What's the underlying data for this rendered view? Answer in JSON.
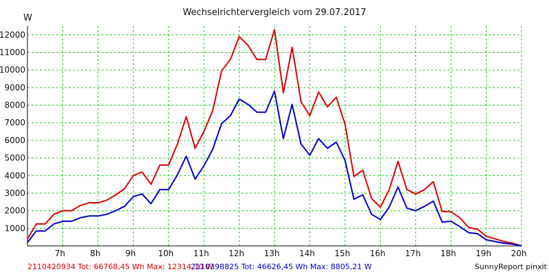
{
  "chart_data": {
    "type": "line",
    "title": "Wechselrichtervergleich vom 29.07.2017",
    "ylabel": "W",
    "xlabel": "",
    "x_range_hours": [
      6.0,
      20.0
    ],
    "ylim": [
      0,
      12500
    ],
    "grid": true,
    "y_ticks": [
      1000,
      2000,
      3000,
      4000,
      5000,
      6000,
      7000,
      8000,
      9000,
      10000,
      11000,
      12000
    ],
    "x_ticks": [
      {
        "value": 7,
        "label": "7h"
      },
      {
        "value": 8,
        "label": "8h"
      },
      {
        "value": 9,
        "label": "9h"
      },
      {
        "value": 10,
        "label": "10h"
      },
      {
        "value": 11,
        "label": "11h"
      },
      {
        "value": 12,
        "label": "12h"
      },
      {
        "value": 13,
        "label": "13h"
      },
      {
        "value": 14,
        "label": "14h"
      },
      {
        "value": 15,
        "label": "15h"
      },
      {
        "value": 16,
        "label": "16h"
      },
      {
        "value": 17,
        "label": "17h"
      },
      {
        "value": 18,
        "label": "18h"
      },
      {
        "value": 19,
        "label": "19h"
      },
      {
        "value": 20,
        "label": "20h"
      }
    ],
    "x": [
      6.0,
      6.25,
      6.5,
      6.75,
      7.0,
      7.25,
      7.5,
      7.75,
      8.0,
      8.25,
      8.5,
      8.75,
      9.0,
      9.25,
      9.5,
      9.75,
      10.0,
      10.25,
      10.5,
      10.75,
      11.0,
      11.25,
      11.5,
      11.75,
      12.0,
      12.25,
      12.5,
      12.75,
      13.0,
      13.25,
      13.5,
      13.75,
      14.0,
      14.25,
      14.5,
      14.75,
      15.0,
      15.25,
      15.5,
      15.75,
      16.0,
      16.25,
      16.5,
      16.75,
      17.0,
      17.25,
      17.5,
      17.75,
      18.0,
      18.25,
      18.5,
      18.75,
      19.0,
      19.25,
      19.5,
      19.75,
      20.0
    ],
    "series": [
      {
        "name": "2110420934",
        "color": "#dd0000",
        "legend": "2110420934 Tot: 66768,45 Wh Max: 12314,10 W",
        "values": [
          400,
          1250,
          1250,
          1800,
          2000,
          2000,
          2300,
          2450,
          2450,
          2600,
          2900,
          3250,
          4000,
          4200,
          3500,
          4600,
          4600,
          5800,
          7350,
          5550,
          6500,
          7700,
          9950,
          10600,
          11900,
          11400,
          10600,
          10600,
          12300,
          8700,
          11300,
          8200,
          7400,
          8750,
          7900,
          8450,
          6900,
          3950,
          4300,
          2700,
          2200,
          3200,
          4800,
          3200,
          2950,
          3200,
          3650,
          1950,
          1950,
          1600,
          1050,
          950,
          550,
          400,
          250,
          150,
          0
        ]
      },
      {
        "name": "2110398825",
        "color": "#0000cc",
        "legend": "2110398825 Tot: 46626,45 Wh Max: 8805,21 W",
        "values": [
          200,
          850,
          850,
          1250,
          1400,
          1400,
          1600,
          1700,
          1700,
          1800,
          2000,
          2250,
          2800,
          2950,
          2400,
          3200,
          3200,
          4050,
          5100,
          3800,
          4550,
          5500,
          6950,
          7400,
          8350,
          8050,
          7600,
          7600,
          8800,
          6100,
          8050,
          5800,
          5150,
          6100,
          5550,
          5900,
          4850,
          2650,
          2900,
          1800,
          1500,
          2200,
          3350,
          2150,
          2000,
          2250,
          2550,
          1350,
          1400,
          1100,
          750,
          700,
          350,
          250,
          150,
          100,
          0
        ]
      }
    ],
    "credit": "SunnyReport pinxit"
  }
}
